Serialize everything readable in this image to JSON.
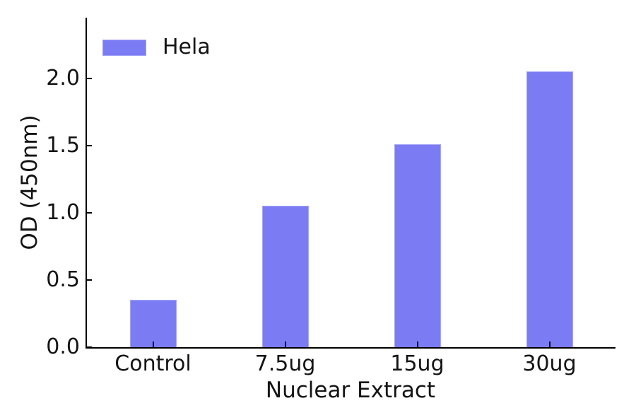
{
  "chart_data": {
    "type": "bar",
    "title": "",
    "categories": [
      "Control",
      "7.5ug",
      "15ug",
      "30ug"
    ],
    "series": [
      {
        "name": "Hela",
        "values": [
          0.35,
          1.05,
          1.51,
          2.05
        ]
      }
    ],
    "xlabel": "Nuclear Extract",
    "ylabel": "OD (450nm)",
    "ylim": [
      0,
      2.45
    ],
    "yticks": [
      0.0,
      0.5,
      1.0,
      1.5,
      2.0
    ],
    "ytick_labels": [
      "0.0",
      "0.5",
      "1.0",
      "1.5",
      "2.0"
    ],
    "bar_color": "#7b7cf3",
    "bar_edge_color": "#a5a6f7",
    "axis_color": "#000000",
    "text_color": "#141414",
    "grid": false,
    "legend_position": "upper-left",
    "legend_frame": false
  }
}
